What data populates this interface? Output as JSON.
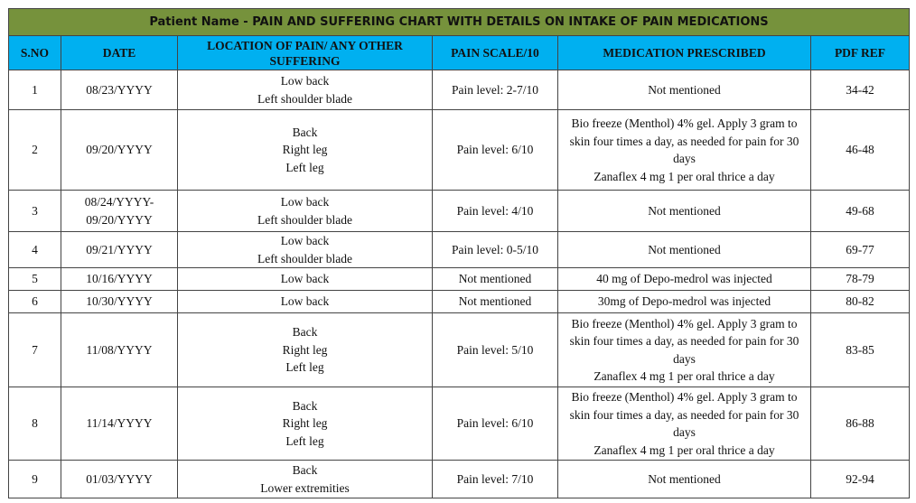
{
  "title": "Patient Name - PAIN AND SUFFERING CHART WITH DETAILS ON INTAKE OF PAIN MEDICATIONS",
  "colors": {
    "title_bg": "#76923C",
    "header_bg": "#00B0F0"
  },
  "columns": [
    "S.NO",
    "DATE",
    "LOCATION OF PAIN/ ANY OTHER SUFFERING",
    "PAIN SCALE/10",
    "MEDICATION PRESCRIBED",
    "PDF REF"
  ],
  "rows": [
    {
      "sno": "1",
      "date": [
        "08/23/YYYY"
      ],
      "location": [
        "Low back",
        "Left shoulder blade"
      ],
      "pain": "Pain level: 2-7/10",
      "medication": [
        "Not mentioned"
      ],
      "ref": "34-42"
    },
    {
      "sno": "2",
      "date": [
        "09/20/YYYY"
      ],
      "location": [
        "Back",
        "Right leg",
        "Left leg"
      ],
      "pain": "Pain level: 6/10",
      "medication": [
        "Bio freeze (Menthol) 4% gel. Apply 3 gram to skin four times a day, as needed for pain for 30 days",
        "Zanaflex 4 mg 1 per oral thrice a day"
      ],
      "ref": "46-48"
    },
    {
      "sno": "3",
      "date": [
        "08/24/YYYY-",
        "09/20/YYYY"
      ],
      "location": [
        "Low back",
        "Left shoulder blade"
      ],
      "pain": "Pain level: 4/10",
      "medication": [
        "Not mentioned"
      ],
      "ref": "49-68"
    },
    {
      "sno": "4",
      "date": [
        "09/21/YYYY"
      ],
      "location": [
        "Low back",
        "Left shoulder blade"
      ],
      "pain": "Pain level: 0-5/10",
      "medication": [
        "Not mentioned"
      ],
      "ref": "69-77"
    },
    {
      "sno": "5",
      "date": [
        "10/16/YYYY"
      ],
      "location": [
        "Low back"
      ],
      "pain": "Not mentioned",
      "medication": [
        "40 mg of Depo-medrol was injected"
      ],
      "ref": "78-79"
    },
    {
      "sno": "6",
      "date": [
        "10/30/YYYY"
      ],
      "location": [
        "Low back"
      ],
      "pain": "Not mentioned",
      "medication": [
        "30mg of Depo-medrol was injected"
      ],
      "ref": "80-82"
    },
    {
      "sno": "7",
      "date": [
        "11/08/YYYY"
      ],
      "location": [
        "Back",
        "Right leg",
        "Left leg"
      ],
      "pain": "Pain level: 5/10",
      "medication": [
        "Bio freeze (Menthol) 4% gel. Apply 3 gram to skin four times a day, as needed for pain for 30 days",
        "Zanaflex 4 mg 1 per oral thrice a day"
      ],
      "ref": "83-85"
    },
    {
      "sno": "8",
      "date": [
        "11/14/YYYY"
      ],
      "location": [
        "Back",
        "Right leg",
        "Left leg"
      ],
      "pain": "Pain level: 6/10",
      "medication": [
        "Bio freeze (Menthol) 4% gel. Apply 3 gram to skin four times a day, as needed for pain for 30 days",
        "Zanaflex 4 mg 1 per oral thrice a day"
      ],
      "ref": "86-88"
    },
    {
      "sno": "9",
      "date": [
        "01/03/YYYY"
      ],
      "location": [
        "Back",
        "Lower extremities"
      ],
      "pain": "Pain level: 7/10",
      "medication": [
        "Not mentioned"
      ],
      "ref": "92-94"
    }
  ]
}
